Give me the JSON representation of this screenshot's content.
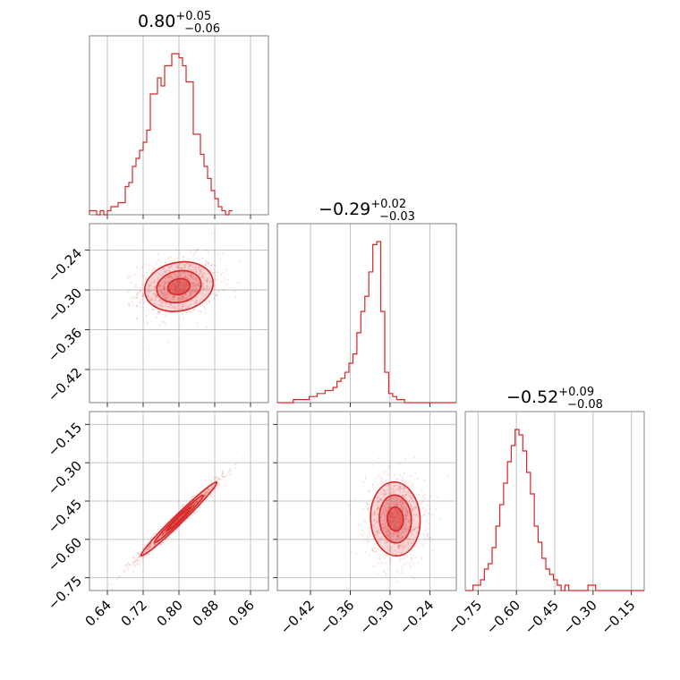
{
  "chart_data": {
    "type": "corner",
    "color": "#d62728",
    "grid": true,
    "parameters": [
      {
        "name": "",
        "title": {
          "median": "0.80",
          "plus": "+0.05",
          "minus": "−0.06"
        },
        "range": [
          0.6,
          1.0
        ],
        "ticks": [
          0.64,
          0.72,
          0.8,
          0.88,
          0.96
        ],
        "tick_labels": [
          "0.64",
          "0.72",
          "0.80",
          "0.88",
          "0.96"
        ],
        "hist": {
          "edges_start": 0.6,
          "bin_width": 0.008,
          "counts": [
            1,
            1,
            0,
            1,
            0,
            1,
            2,
            2,
            3,
            3,
            7,
            8,
            12,
            14,
            16,
            18,
            21,
            30,
            30,
            34,
            32,
            37,
            37,
            40,
            40,
            39,
            37,
            33,
            33,
            20,
            20,
            15,
            12,
            9,
            6,
            4,
            2,
            1,
            0,
            1
          ]
        }
      },
      {
        "name": "",
        "title": {
          "median": "−0.29",
          "plus": "+0.02",
          "minus": "−0.03"
        },
        "range": [
          -0.47,
          -0.2
        ],
        "ticks": [
          -0.42,
          -0.36,
          -0.3,
          -0.24
        ],
        "tick_labels": [
          "−0.42",
          "−0.36",
          "−0.30",
          "−0.24"
        ],
        "hist": {
          "edges_start": -0.47,
          "bin_width": 0.006,
          "counts": [
            0,
            0,
            0,
            0,
            1,
            1,
            1,
            1,
            2,
            2,
            3,
            3,
            4,
            4,
            5,
            7,
            8,
            10,
            13,
            16,
            23,
            30,
            35,
            43,
            52,
            53,
            30,
            10,
            3,
            2,
            1,
            1,
            0,
            0,
            0,
            0,
            0,
            0,
            0,
            0,
            0,
            0,
            0,
            0,
            0
          ]
        }
      },
      {
        "name": "",
        "title": {
          "median": "−0.52",
          "plus": "+0.09",
          "minus": "−0.08"
        },
        "range": [
          -0.8,
          -0.1
        ],
        "ticks": [
          -0.75,
          -0.6,
          -0.45,
          -0.3,
          -0.15
        ],
        "tick_labels": [
          "−0.75",
          "−0.60",
          "−0.45",
          "−0.30",
          "−0.15"
        ],
        "hist": {
          "edges_start": -0.8,
          "bin_width": 0.015,
          "counts": [
            0,
            0,
            1,
            1,
            2,
            4,
            5,
            8,
            12,
            16,
            20,
            24,
            27,
            30,
            29,
            26,
            22,
            18,
            12,
            9,
            6,
            4,
            3,
            2,
            1,
            0,
            1,
            0,
            0,
            0,
            0,
            0,
            1,
            1,
            0,
            0,
            0,
            0,
            0,
            0,
            0,
            0,
            0,
            0,
            0,
            0,
            0
          ]
        }
      }
    ],
    "pairs": [
      {
        "row": 1,
        "col": 0,
        "center": [
          0.8,
          -0.295
        ],
        "sd": [
          0.045,
          0.022
        ],
        "corr": 0.15,
        "samples": 900
      },
      {
        "row": 2,
        "col": 0,
        "center": [
          0.8,
          -0.52
        ],
        "sd": [
          0.05,
          0.085
        ],
        "corr": 0.985,
        "samples": 900
      },
      {
        "row": 2,
        "col": 1,
        "center": [
          -0.292,
          -0.52
        ],
        "sd": [
          0.022,
          0.085
        ],
        "corr": -0.05,
        "samples": 900
      }
    ]
  }
}
